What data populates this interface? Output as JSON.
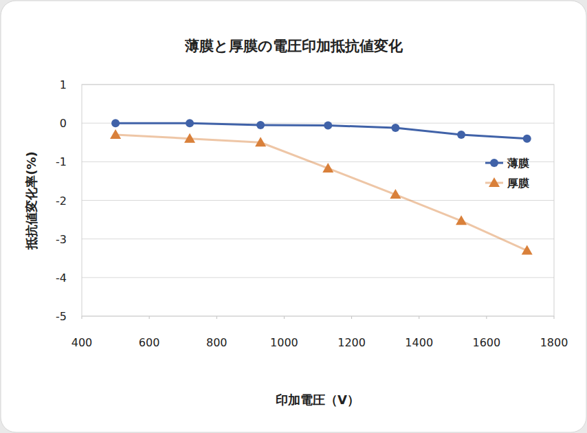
{
  "chart_data": {
    "type": "line",
    "title": "薄膜と厚膜の電圧印加抵抗値変化",
    "x_label": "印加電圧（V）",
    "y_label": "抵抗値変化率(%)",
    "x": [
      500,
      720,
      930,
      1130,
      1330,
      1525,
      1720
    ],
    "series": [
      {
        "name": "薄膜",
        "color": "#4062a8",
        "marker": "circle",
        "line_style": "solid",
        "values": [
          0,
          0,
          -0.05,
          -0.06,
          -0.12,
          -0.3,
          -0.4
        ]
      },
      {
        "name": "厚膜",
        "color": "#d9803a",
        "marker": "triangle",
        "line_style": "solid",
        "values": [
          -0.3,
          -0.4,
          -0.5,
          -1.17,
          -1.85,
          -2.53,
          -3.3
        ]
      }
    ],
    "xlim": [
      400,
      1800
    ],
    "xticks": [
      400,
      600,
      800,
      1000,
      1200,
      1400,
      1600,
      1800
    ],
    "ylim": [
      -5,
      1
    ],
    "yticks": [
      -5,
      -4,
      -3,
      -2,
      -1,
      0,
      1
    ],
    "grid": true,
    "legend": "right"
  }
}
